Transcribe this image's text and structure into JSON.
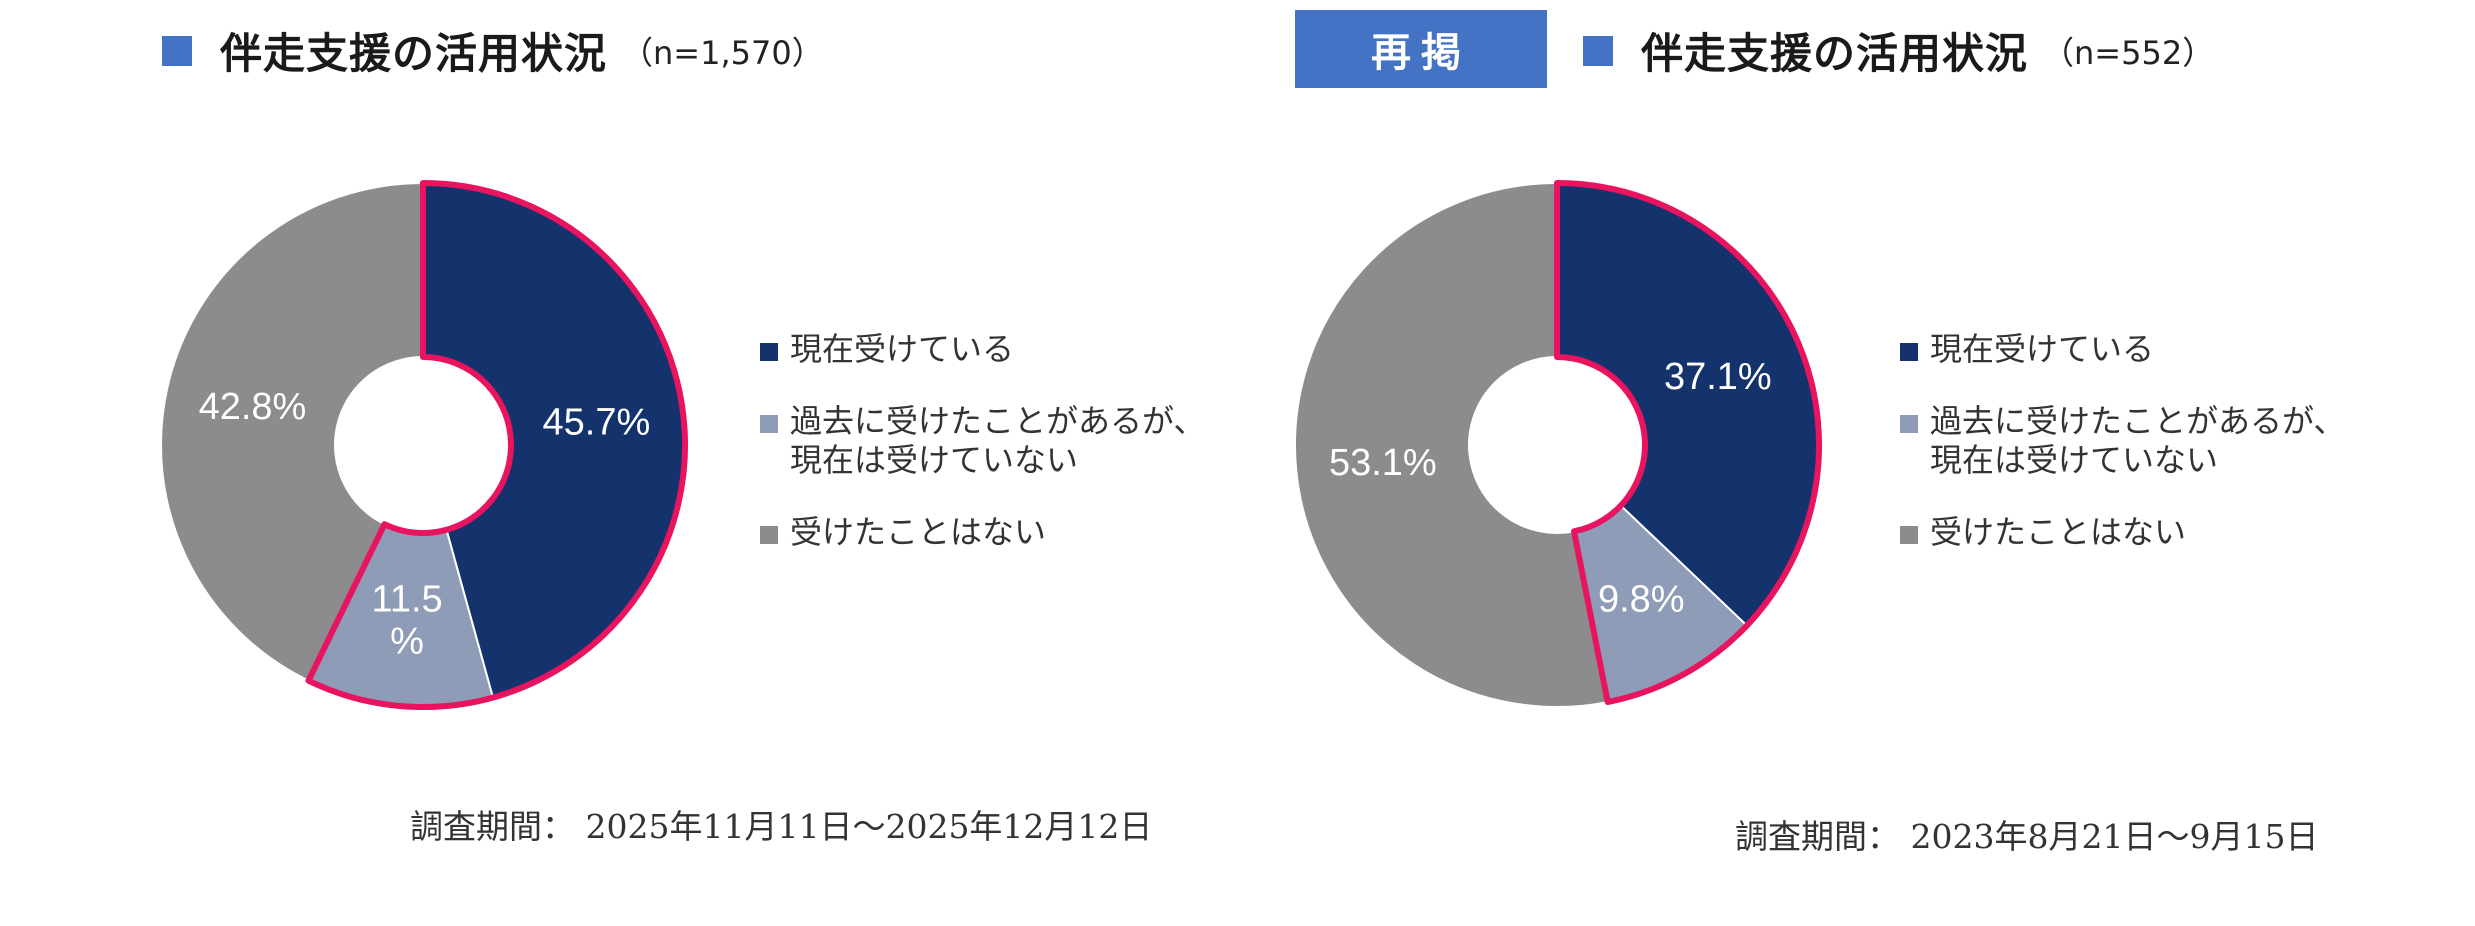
{
  "colors": {
    "current": "#14336c",
    "past": "#8e9cb8",
    "never": "#8c8b8d",
    "highlight": "#e8145f",
    "accent": "#4472c4"
  },
  "left": {
    "title": "伴走支援の活用状況",
    "n_label": "（n=1,570）",
    "legend": [
      "現在受けている",
      "過去に受けたことがあるが、\n現在は受けていない",
      "受けたことはない"
    ],
    "period": "調査期間： 2025年11月11日～2025年12月12日"
  },
  "right": {
    "badge": "再掲",
    "title": "伴走支援の活用状況",
    "n_label": "（n=552）",
    "legend": [
      "現在受けている",
      "過去に受けたことがあるが、\n現在は受けていない",
      "受けたことはない"
    ],
    "period": "調査期間： 2023年8月21日～9月15日"
  },
  "chart_data": [
    {
      "type": "pie",
      "title": "伴走支援の活用状況",
      "categories": [
        "現在受けている",
        "過去に受けたことがあるが、現在は受けていない",
        "受けたことはない"
      ],
      "values": [
        45.7,
        11.5,
        42.8
      ],
      "labels": [
        "45.7%",
        "11.5\n%",
        "42.8%"
      ],
      "highlighted": [
        true,
        true,
        false
      ]
    },
    {
      "type": "pie",
      "title": "伴走支援の活用状況",
      "categories": [
        "現在受けている",
        "過去に受けたことがあるが、現在は受けていない",
        "受けたことはない"
      ],
      "values": [
        37.1,
        9.8,
        53.1
      ],
      "labels": [
        "37.1%",
        "9.8%",
        "53.1%"
      ],
      "highlighted": [
        true,
        true,
        false
      ]
    }
  ]
}
